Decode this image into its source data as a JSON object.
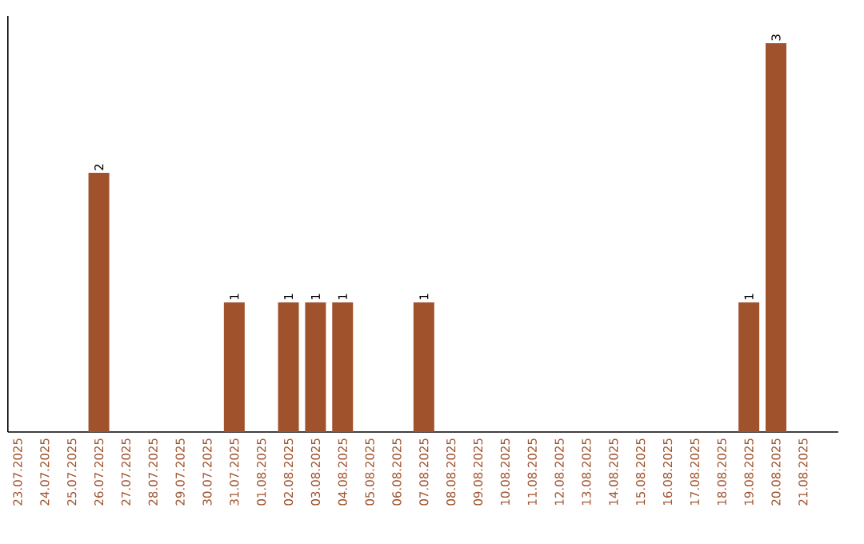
{
  "chart_data": {
    "type": "bar",
    "categories": [
      "23.07.2025",
      "24.07.2025",
      "25.07.2025",
      "26.07.2025",
      "27.07.2025",
      "28.07.2025",
      "29.07.2025",
      "30.07.2025",
      "31.07.2025",
      "01.08.2025",
      "02.08.2025",
      "03.08.2025",
      "04.08.2025",
      "05.08.2025",
      "06.08.2025",
      "07.08.2025",
      "08.08.2025",
      "09.08.2025",
      "10.08.2025",
      "11.08.2025",
      "12.08.2025",
      "13.08.2025",
      "14.08.2025",
      "15.08.2025",
      "16.08.2025",
      "17.08.2025",
      "18.08.2025",
      "19.08.2025",
      "20.08.2025",
      "21.08.2025"
    ],
    "values": [
      0,
      0,
      0,
      2,
      0,
      0,
      0,
      0,
      1,
      0,
      1,
      1,
      1,
      0,
      0,
      1,
      0,
      0,
      0,
      0,
      0,
      0,
      0,
      0,
      0,
      0,
      0,
      1,
      3,
      0
    ],
    "color": "#a0522d",
    "value_labels": [
      null,
      null,
      null,
      "2",
      null,
      null,
      null,
      null,
      "1",
      null,
      "1",
      "1",
      "1",
      null,
      null,
      "1",
      null,
      null,
      null,
      null,
      null,
      null,
      null,
      null,
      null,
      null,
      null,
      "1",
      "3",
      null
    ]
  }
}
